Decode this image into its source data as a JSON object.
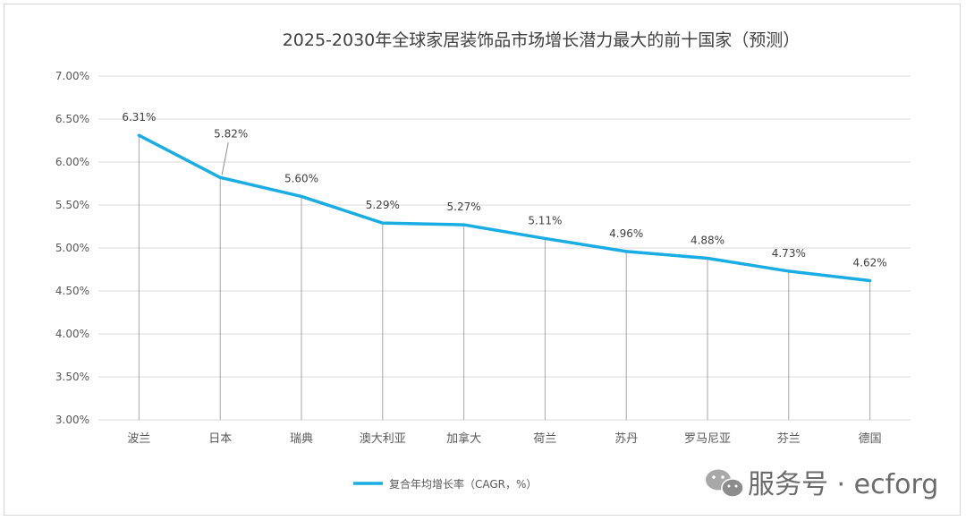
{
  "chart_data": {
    "type": "line",
    "title": "2025-2030年全球家居装饰品市场增长潜力最大的前十国家（预测）",
    "categories": [
      "波兰",
      "日本",
      "瑞典",
      "澳大利亚",
      "加拿大",
      "荷兰",
      "苏丹",
      "罗马尼亚",
      "芬兰",
      "德国"
    ],
    "series": [
      {
        "name": "复合年均增长率（CAGR，%）",
        "values": [
          6.31,
          5.82,
          5.6,
          5.29,
          5.27,
          5.11,
          4.96,
          4.88,
          4.73,
          4.62
        ],
        "labels": [
          "6.31%",
          "5.82%",
          "5.60%",
          "5.29%",
          "5.27%",
          "5.11%",
          "4.96%",
          "4.88%",
          "4.73%",
          "4.62%"
        ],
        "color": "#19ade3"
      }
    ],
    "ylim": [
      3.0,
      7.0
    ],
    "yticks": [
      "3.00%",
      "3.50%",
      "4.00%",
      "4.50%",
      "5.00%",
      "5.50%",
      "6.00%",
      "6.50%",
      "7.00%"
    ],
    "grid": true,
    "legend_position": "bottom-center",
    "xlabel": "",
    "ylabel": ""
  },
  "watermark": {
    "text": "服务号 · ecforg",
    "icon": "wechat-icon"
  },
  "colors": {
    "line": "#19ade3",
    "grid": "#d9d9d9",
    "drop_line": "#a6a6a6"
  }
}
